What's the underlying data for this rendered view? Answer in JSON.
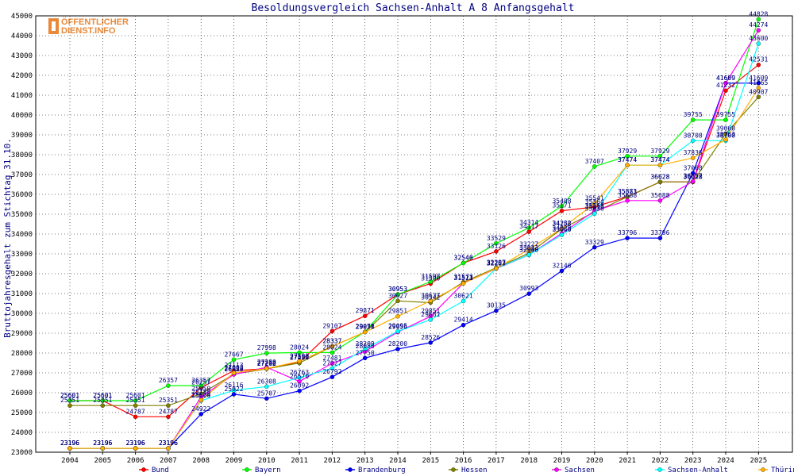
{
  "logo": {
    "line1": "ÖFFENTLICHER",
    "line2": "DIENST.INFO"
  },
  "chart_data": {
    "type": "line",
    "title": "Besoldungsvergleich Sachsen-Anhalt A 8 Anfangsgehalt",
    "ylabel": "Bruttojahresgehalt zum Stichtag 31.10.",
    "xlabel": "",
    "x": [
      "2004",
      "2005",
      "2006",
      "2007",
      "2008",
      "2009",
      "2010",
      "2011",
      "2012",
      "2013",
      "2014",
      "2015",
      "2016",
      "2017",
      "2018",
      "2019",
      "2020",
      "2021",
      "2022",
      "2023",
      "2024",
      "2025"
    ],
    "ylim": [
      23000,
      45000
    ],
    "yticks": [
      23000,
      24000,
      25000,
      26000,
      27000,
      28000,
      29000,
      30000,
      31000,
      32000,
      33000,
      34000,
      35000,
      36000,
      37000,
      38000,
      39000,
      40000,
      41000,
      42000,
      43000,
      44000,
      45000
    ],
    "grid": true,
    "legend_position": "bottom",
    "series": [
      {
        "name": "Bund",
        "color": "#ff0000",
        "values": [
          25601,
          25601,
          24787,
          24787,
          26257,
          27113,
          27212,
          27529,
          29107,
          29871,
          30953,
          31500,
          32546,
          33126,
          34117,
          35171,
          35364,
          35883,
          36628,
          36628,
          41232,
          42531
        ]
      },
      {
        "name": "Bayern",
        "color": "#00ff00",
        "values": [
          25601,
          25601,
          25601,
          26357,
          26357,
          27667,
          27998,
          28024,
          28024,
          29071,
          30953,
          31598,
          32540,
          33529,
          34314,
          35408,
          37407,
          37929,
          37929,
          39755,
          39755,
          44828
        ]
      },
      {
        "name": "Brandenburg",
        "color": "#0000ff",
        "values": [
          23196,
          23196,
          23196,
          23196,
          24922,
          25922,
          25707,
          26092,
          26792,
          27750,
          28200,
          28526,
          29414,
          30135,
          30993,
          32146,
          33329,
          33796,
          33796,
          37068,
          41609,
          41609
        ]
      },
      {
        "name": "Hessen",
        "color": "#808000",
        "values": [
          25351,
          25351,
          25351,
          25351,
          25950,
          26933,
          27202,
          27494,
          28337,
          29058,
          30627,
          30542,
          31573,
          32297,
          33033,
          34258,
          35113,
          35871,
          36628,
          36628,
          39060,
          40907
        ]
      },
      {
        "name": "Sachsen",
        "color": "#ff00ff",
        "values": [
          23196,
          23196,
          23196,
          23196,
          25780,
          26920,
          27280,
          26570,
          27481,
          28080,
          29056,
          29851,
          31523,
          32253,
          32948,
          34028,
          35168,
          35688,
          35688,
          36657,
          41609,
          44274
        ]
      },
      {
        "name": "Sachsen-Anhalt",
        "color": "#00ffff",
        "values": [
          23196,
          23196,
          23196,
          23196,
          25600,
          26116,
          26308,
          26763,
          27227,
          28209,
          29095,
          29681,
          30621,
          32267,
          32950,
          33960,
          35030,
          37474,
          37474,
          38708,
          38708,
          43600
        ]
      },
      {
        "name": "Thüringen",
        "color": "#ffb000",
        "values": [
          23196,
          23196,
          23196,
          23196,
          25624,
          27003,
          27214,
          27590,
          28337,
          29058,
          29851,
          30637,
          31511,
          32267,
          33227,
          34282,
          35541,
          37474,
          37474,
          37836,
          38763,
          41365
        ]
      }
    ]
  }
}
